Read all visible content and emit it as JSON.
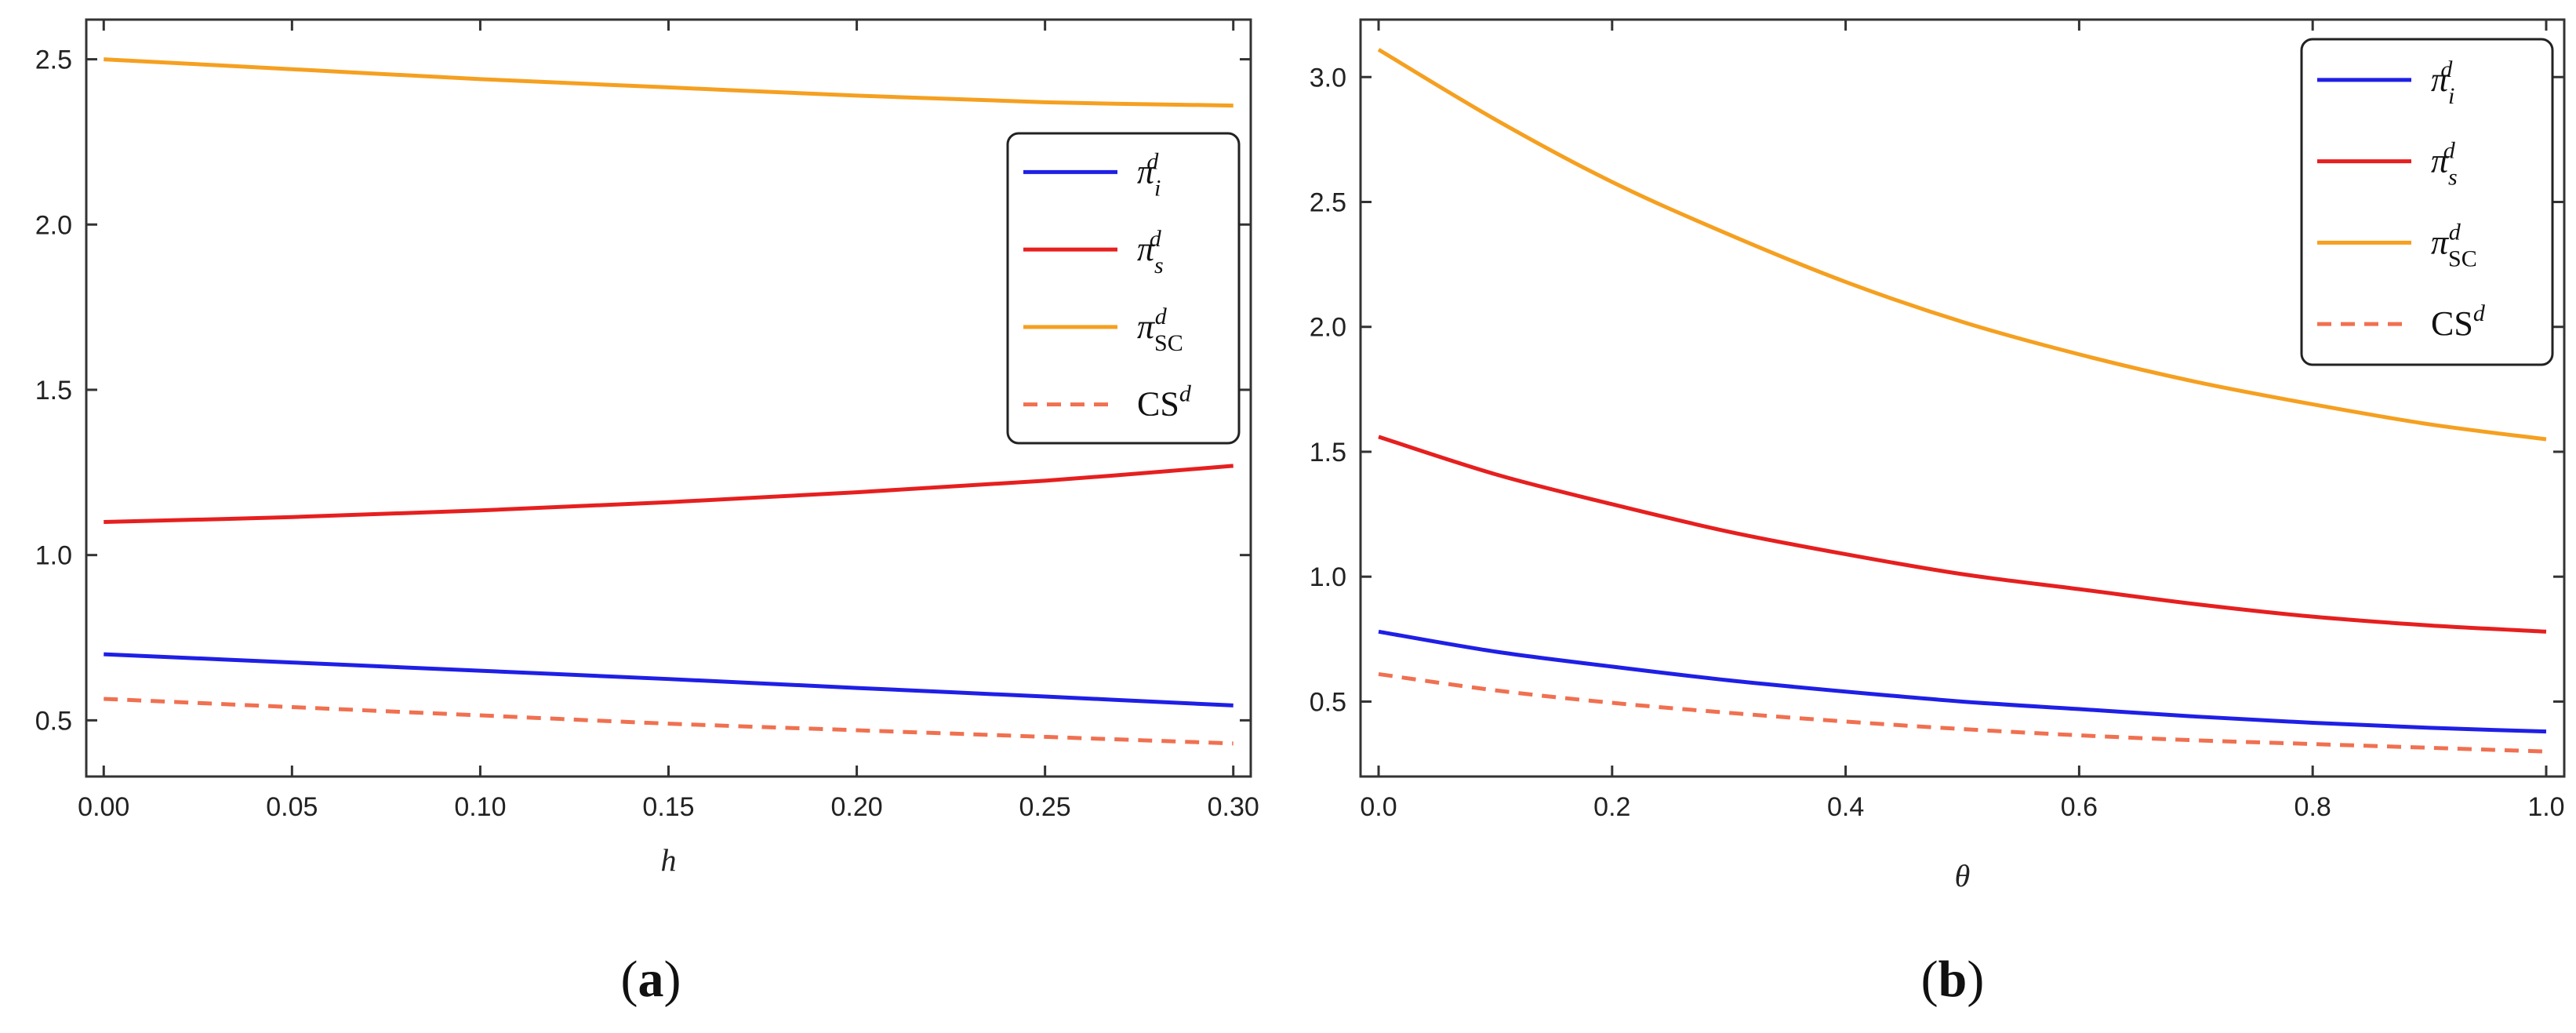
{
  "chart_data": [
    {
      "type": "line",
      "panel": "a",
      "xlabel": "h",
      "ylabel": "",
      "xlim": [
        0,
        0.3
      ],
      "ylim": [
        0.33,
        2.62
      ],
      "xticks": [
        "0.00",
        "0.05",
        "0.10",
        "0.15",
        "0.20",
        "0.25",
        "0.30"
      ],
      "yticks": [
        "0.5",
        "1.0",
        "1.5",
        "2.0",
        "2.5"
      ],
      "legend_position": "right",
      "x": [
        0.0,
        0.05,
        0.1,
        0.15,
        0.2,
        0.25,
        0.3
      ],
      "series": [
        {
          "name": "π_i^d",
          "symbol": "π",
          "sup": "d",
          "sub": "i",
          "color": "#1f1fe6",
          "dash": false,
          "values": [
            0.7,
            0.675,
            0.65,
            0.625,
            0.598,
            0.572,
            0.545
          ]
        },
        {
          "name": "π_s^d",
          "symbol": "π",
          "sup": "d",
          "sub": "s",
          "color": "#e61f1f",
          "dash": false,
          "values": [
            1.1,
            1.115,
            1.135,
            1.16,
            1.19,
            1.225,
            1.27
          ]
        },
        {
          "name": "π_SC^d",
          "symbol": "π",
          "sup": "d",
          "sub": "SC",
          "color": "#f5a020",
          "dash": false,
          "values": [
            2.5,
            2.47,
            2.44,
            2.415,
            2.39,
            2.37,
            2.36
          ]
        },
        {
          "name": "CS^d",
          "symbol": "CS",
          "sup": "d",
          "sub": "",
          "color": "#f07050",
          "dash": true,
          "values": [
            0.565,
            0.54,
            0.515,
            0.49,
            0.47,
            0.45,
            0.43
          ]
        }
      ],
      "panel_label": "(a)"
    },
    {
      "type": "line",
      "panel": "b",
      "xlabel": "θ",
      "ylabel": "",
      "xlim": [
        0,
        1.0
      ],
      "ylim": [
        0.2,
        3.23
      ],
      "xticks": [
        "0.0",
        "0.2",
        "0.4",
        "0.6",
        "0.8",
        "1.0"
      ],
      "yticks": [
        "0.5",
        "1.0",
        "1.5",
        "2.0",
        "2.5",
        "3.0"
      ],
      "legend_position": "top-right",
      "x": [
        0.0,
        0.1,
        0.2,
        0.3,
        0.4,
        0.5,
        0.6,
        0.7,
        0.8,
        0.9,
        1.0
      ],
      "series": [
        {
          "name": "π_i^d",
          "symbol": "π",
          "sup": "d",
          "sub": "i",
          "color": "#1f1fe6",
          "dash": false,
          "values": [
            0.78,
            0.7,
            0.64,
            0.585,
            0.54,
            0.5,
            0.47,
            0.44,
            0.415,
            0.395,
            0.38
          ]
        },
        {
          "name": "π_s^d",
          "symbol": "π",
          "sup": "d",
          "sub": "s",
          "color": "#e61f1f",
          "dash": false,
          "values": [
            1.56,
            1.41,
            1.29,
            1.18,
            1.09,
            1.01,
            0.95,
            0.89,
            0.84,
            0.805,
            0.78
          ]
        },
        {
          "name": "π_SC^d",
          "symbol": "π",
          "sup": "d",
          "sub": "SC",
          "color": "#f5a020",
          "dash": false,
          "values": [
            3.11,
            2.83,
            2.58,
            2.37,
            2.18,
            2.02,
            1.89,
            1.78,
            1.69,
            1.61,
            1.55
          ]
        },
        {
          "name": "CS^d",
          "symbol": "CS",
          "sup": "d",
          "sub": "",
          "color": "#f07050",
          "dash": true,
          "values": [
            0.61,
            0.545,
            0.495,
            0.455,
            0.42,
            0.39,
            0.365,
            0.345,
            0.33,
            0.315,
            0.3
          ]
        }
      ],
      "panel_label": "(b)"
    }
  ]
}
